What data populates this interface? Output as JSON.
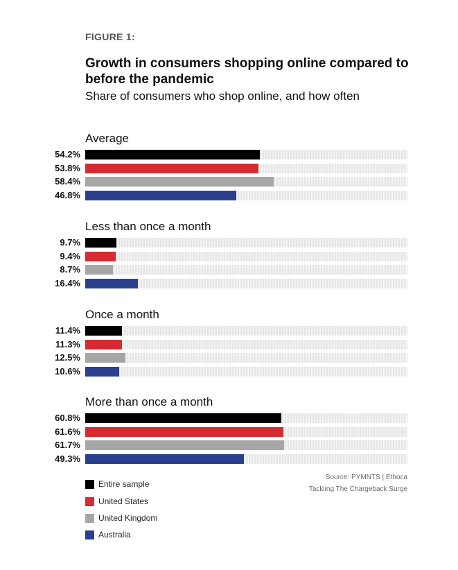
{
  "figure_label": "FIGURE 1:",
  "chart_data": {
    "type": "bar",
    "orientation": "horizontal",
    "title": "Growth in consumers shopping online compared to before the pandemic",
    "subtitle": "Share of consumers who shop online, and how often",
    "value_format": "percent",
    "xlim": [
      0,
      100
    ],
    "series": [
      {
        "name": "Entire sample",
        "color": "#000000"
      },
      {
        "name": "United States",
        "color": "#d52b32"
      },
      {
        "name": "United Kingdom",
        "color": "#a6a6a6"
      },
      {
        "name": "Australia",
        "color": "#2b3f8f"
      }
    ],
    "groups": [
      {
        "title": "Average",
        "values": [
          54.2,
          53.8,
          58.4,
          46.8
        ],
        "labels": [
          "54.2%",
          "53.8%",
          "58.4%",
          "46.8%"
        ]
      },
      {
        "title": "Less than once a month",
        "values": [
          9.7,
          9.4,
          8.7,
          16.4
        ],
        "labels": [
          "9.7%",
          "9.4%",
          "8.7%",
          "16.4%"
        ]
      },
      {
        "title": "Once a month",
        "values": [
          11.4,
          11.3,
          12.5,
          10.6
        ],
        "labels": [
          "11.4%",
          "11.3%",
          "12.5%",
          "10.6%"
        ]
      },
      {
        "title": "More than once a month",
        "values": [
          60.8,
          61.6,
          61.7,
          49.3
        ],
        "labels": [
          "60.8%",
          "61.6%",
          "61.7%",
          "49.3%"
        ]
      }
    ]
  },
  "source": {
    "line1": "Source: PYMNTS  |  Ethoca",
    "line2": "Tackling The Chargeback Surge"
  }
}
